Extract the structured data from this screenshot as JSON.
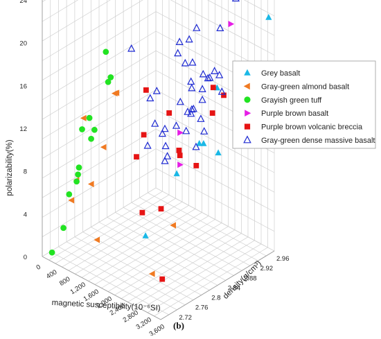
{
  "chart_data": {
    "type": "scatter",
    "panel_label": "(b)",
    "xlabel": "magnetic susceptibility(10⁻⁶SI)",
    "ylabel": "density(g/cm³)",
    "zlabel": "polarizability(%)",
    "xlim": [
      0,
      3600
    ],
    "ylim": [
      2.68,
      2.96
    ],
    "zlim": [
      0,
      24
    ],
    "x_ticks": [
      "0",
      "400",
      "800",
      "1,200",
      "1,600",
      "2,000",
      "2,400",
      "2,800",
      "3,200",
      "3,600"
    ],
    "y_ticks": [
      "2.72",
      "2.76",
      "2.8",
      "2.84",
      "2.88",
      "2.92",
      "2.96"
    ],
    "z_ticks": [
      "0",
      "4",
      "8",
      "12",
      "16",
      "20",
      "24"
    ],
    "grid": true,
    "legend_position": "top-right",
    "series": [
      {
        "name": "Grey basalt",
        "marker": "triangle-up",
        "color": "#1ab8e6",
        "filled": true,
        "points": [
          [
            2400,
            2.74,
            4.5
          ],
          [
            2800,
            2.84,
            11.5
          ],
          [
            3100,
            2.76,
            11
          ],
          [
            3500,
            2.83,
            12
          ],
          [
            2600,
            2.9,
            15
          ],
          [
            3300,
            2.81,
            13
          ],
          [
            3000,
            2.94,
            16.5
          ],
          [
            3400,
            2.92,
            16
          ],
          [
            3550,
            2.95,
            22
          ]
        ]
      },
      {
        "name": "Gray-green almond basalt",
        "marker": "triangle-left",
        "color": "#f07a22",
        "filled": true,
        "points": [
          [
            1300,
            2.71,
            3
          ],
          [
            3100,
            2.7,
            3
          ],
          [
            400,
            2.72,
            5
          ],
          [
            800,
            2.7,
            8
          ],
          [
            1000,
            2.72,
            7.5
          ],
          [
            400,
            2.75,
            12
          ],
          [
            1500,
            2.71,
            12
          ],
          [
            1400,
            2.75,
            16
          ],
          [
            1100,
            2.77,
            15
          ],
          [
            3000,
            2.76,
            6
          ]
        ]
      },
      {
        "name": "Grayish green tuff",
        "marker": "circle",
        "color": "#22e322",
        "filled": true,
        "points": [
          [
            50,
            2.7,
            0
          ],
          [
            150,
            2.72,
            2
          ],
          [
            200,
            2.73,
            5
          ],
          [
            100,
            2.76,
            6
          ],
          [
            550,
            2.72,
            7
          ],
          [
            500,
            2.73,
            8
          ],
          [
            100,
            2.77,
            10
          ],
          [
            200,
            2.78,
            11
          ],
          [
            500,
            2.76,
            10
          ],
          [
            600,
            2.76,
            11
          ],
          [
            400,
            2.81,
            14
          ],
          [
            600,
            2.8,
            15
          ],
          [
            700,
            2.78,
            18
          ]
        ]
      },
      {
        "name": "Purple brown basalt",
        "marker": "triangle-right",
        "color": "#e61ee6",
        "filled": true,
        "points": [
          [
            2300,
            2.92,
            24
          ],
          [
            2400,
            2.95,
            19.5
          ],
          [
            3200,
            2.76,
            12
          ],
          [
            3200,
            2.76,
            15
          ]
        ]
      },
      {
        "name": "Purple brown volcanic breccia",
        "marker": "square",
        "color": "#e61414",
        "filled": true,
        "points": [
          [
            3400,
            2.7,
            3
          ],
          [
            2300,
            2.74,
            6.5
          ],
          [
            2500,
            2.77,
            6.5
          ],
          [
            2000,
            2.75,
            11
          ],
          [
            2100,
            2.76,
            13
          ],
          [
            1800,
            2.79,
            16
          ],
          [
            2500,
            2.79,
            15
          ],
          [
            2800,
            2.79,
            12
          ],
          [
            2950,
            2.78,
            12
          ],
          [
            3200,
            2.8,
            11
          ],
          [
            3200,
            2.84,
            15
          ],
          [
            3100,
            2.85,
            17
          ],
          [
            3050,
            2.88,
            15.5
          ]
        ]
      },
      {
        "name": "Gray-green dense massive basalt",
        "marker": "triangle-up",
        "color": "#1e2ad2",
        "filled": false,
        "points": [
          [
            1600,
            2.77,
            20
          ],
          [
            2000,
            2.8,
            16
          ],
          [
            1800,
            2.8,
            15
          ],
          [
            2200,
            2.84,
            20
          ],
          [
            1600,
            2.81,
            10
          ],
          [
            1700,
            2.82,
            12
          ],
          [
            2000,
            2.82,
            12
          ],
          [
            1800,
            2.83,
            11
          ],
          [
            1900,
            2.83,
            10
          ],
          [
            2200,
            2.81,
            10
          ],
          [
            2000,
            2.82,
            9
          ],
          [
            2100,
            2.84,
            12
          ],
          [
            2400,
            2.84,
            12
          ],
          [
            2200,
            2.86,
            13
          ],
          [
            2300,
            2.86,
            13
          ],
          [
            2500,
            2.85,
            14
          ],
          [
            2600,
            2.86,
            13
          ],
          [
            2700,
            2.86,
            12
          ],
          [
            2700,
            2.84,
            11
          ],
          [
            2100,
            2.85,
            14
          ],
          [
            2300,
            2.86,
            16
          ],
          [
            2200,
            2.87,
            15
          ],
          [
            2200,
            2.87,
            13
          ],
          [
            2400,
            2.88,
            14
          ],
          [
            2000,
            2.87,
            17
          ],
          [
            1900,
            2.86,
            18
          ],
          [
            2000,
            2.88,
            19
          ],
          [
            2100,
            2.88,
            17
          ],
          [
            2300,
            2.89,
            16
          ],
          [
            2400,
            2.88,
            15
          ],
          [
            2100,
            2.89,
            20
          ],
          [
            2500,
            2.89,
            16
          ],
          [
            2200,
            2.91,
            15
          ],
          [
            2400,
            2.91,
            16
          ],
          [
            2500,
            2.92,
            14
          ],
          [
            2300,
            2.93,
            15
          ],
          [
            2800,
            2.93,
            23
          ],
          [
            2200,
            2.94,
            19
          ]
        ]
      }
    ]
  }
}
